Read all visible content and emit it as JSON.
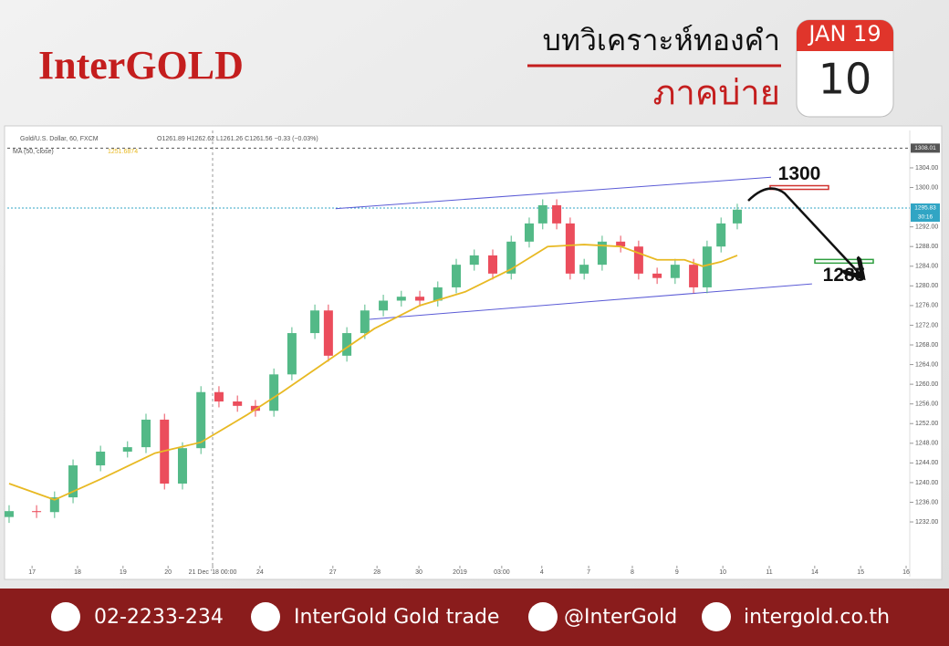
{
  "header": {
    "brand": "InterGOLD",
    "title": "บทวิเคราะห์ทองคำ",
    "subtitle": "ภาคบ่าย",
    "month_year": "JAN 19",
    "day": "10"
  },
  "chart_data": {
    "type": "candlestick",
    "title": "Gold/U.S. Dollar, 60, FXCM",
    "ohlc_text": "O1261.89 H1262.62 L1261.26 C1261.56 −0.33 (−0.03%)",
    "series": [
      {
        "name": "Gold/U.S. Dollar",
        "up_color": "#53b987",
        "down_color": "#eb4d5c",
        "x": [
          0.4,
          6.5,
          10.5,
          14.6,
          20.7,
          26.7,
          30.8,
          34.9,
          38.9,
          43.0,
          47.0,
          51.1,
          55.1,
          59.2,
          63.2,
          68.3,
          71.3,
          75.4,
          79.4,
          83.5,
          87.5,
          91.6,
          95.6,
          99.7,
          103.7,
          107.8,
          111.9,
          115.9,
          118.9,
          122.0,
          125.0,
          128.1,
          132.1,
          136.2,
          140.2,
          144.3,
          148.3,
          152.4,
          155.4,
          158.5,
          162.1
        ],
        "open": [
          1233,
          1234.2,
          1234,
          1237,
          1243.5,
          1246.3,
          1247.2,
          1252.8,
          1239.8,
          1247,
          1258.4,
          1256.5,
          1255.6,
          1254.6,
          1262,
          1270.4,
          1275,
          1265.8,
          1270.4,
          1275,
          1277,
          1277.8,
          1277,
          1279.7,
          1284.3,
          1286.2,
          1282.5,
          1289,
          1292.7,
          1296.4,
          1292.7,
          1282.5,
          1284.3,
          1289,
          1288,
          1282.5,
          1281.6,
          1284.3,
          1279.7,
          1288,
          1292.7
        ],
        "high": [
          1235.4,
          1235.4,
          1238.2,
          1244.7,
          1247.5,
          1248.4,
          1254,
          1254,
          1248.2,
          1259.6,
          1259.6,
          1257.7,
          1256.8,
          1263.2,
          1271.6,
          1276.2,
          1276.2,
          1271.6,
          1276.2,
          1278.2,
          1279,
          1279,
          1280.9,
          1285.5,
          1287.4,
          1287.4,
          1290.2,
          1293.9,
          1297.6,
          1297.6,
          1293.9,
          1285.5,
          1290.2,
          1290.2,
          1289.2,
          1283.7,
          1285.5,
          1285.5,
          1289.2,
          1293.9,
          1296.7
        ],
        "low": [
          1231.8,
          1232.8,
          1232.8,
          1235.8,
          1242.3,
          1245.1,
          1246,
          1238.6,
          1238.6,
          1245.8,
          1255.3,
          1254.4,
          1253.4,
          1253.4,
          1260.8,
          1269.2,
          1264.6,
          1264.6,
          1269.2,
          1273.8,
          1275.8,
          1275.8,
          1275.8,
          1278.5,
          1283.1,
          1281.3,
          1281.3,
          1287.8,
          1291.5,
          1291.5,
          1281.3,
          1281.3,
          1283.1,
          1286.8,
          1281.3,
          1280.4,
          1280.4,
          1278.5,
          1278.5,
          1286.8,
          1291.5
        ],
        "close": [
          1234.2,
          1234,
          1237,
          1243.5,
          1246.3,
          1247.2,
          1252.8,
          1239.8,
          1247,
          1258.4,
          1256.5,
          1255.6,
          1254.6,
          1262,
          1270.4,
          1275,
          1265.8,
          1270.4,
          1275,
          1277,
          1277.8,
          1277,
          1279.7,
          1284.3,
          1286.2,
          1282.5,
          1289,
          1292.7,
          1296.4,
          1292.7,
          1282.5,
          1284.3,
          1289,
          1288,
          1282.5,
          1281.6,
          1284.3,
          1279.7,
          1288,
          1292.7,
          1295.5
        ]
      }
    ],
    "ma": {
      "name": "MA (50, close)",
      "last": 1251.6874,
      "color": "#e8b923",
      "x": [
        0.4,
        10.5,
        20.7,
        32.8,
        43,
        53.1,
        61,
        71.3,
        81.5,
        91.6,
        101.7,
        111.9,
        120,
        128.1,
        136.2,
        144.3,
        150.4,
        154.4,
        158.5,
        162.1
      ],
      "values": [
        1239.8,
        1236.5,
        1240.7,
        1246,
        1248.2,
        1253.7,
        1258.4,
        1264.9,
        1271.3,
        1276,
        1278.8,
        1283.4,
        1288,
        1288.4,
        1288,
        1285.3,
        1285.3,
        1284,
        1284.9,
        1286.2
      ]
    },
    "trendlines": [
      {
        "x": [
          72.9,
          169.6
        ],
        "y": [
          1295.7,
          1302.1
        ],
        "color": "#5b5bd6"
      },
      {
        "x": [
          80.4,
          178.7
        ],
        "y": [
          1273.2,
          1280.4
        ],
        "color": "#5b5bd6"
      }
    ],
    "current_price": 1295.83,
    "countdown": "30:16",
    "top_price": 1308.01,
    "targets": [
      {
        "value": 1300,
        "color": "#d0312d"
      },
      {
        "value": 1285,
        "color": "#2e9e3f"
      }
    ],
    "xlim": [
      0,
      200
    ],
    "ylim": [
      1223.1,
      1311.6
    ],
    "xticks": [
      {
        "value": 5.5,
        "label": "17"
      },
      {
        "value": 15.6,
        "label": "18"
      },
      {
        "value": 25.7,
        "label": "19"
      },
      {
        "value": 35.7,
        "label": "20"
      },
      {
        "value": 45.6,
        "label": "21 Dec '18   00:00"
      },
      {
        "value": 56.1,
        "label": "24"
      },
      {
        "value": 72.3,
        "label": "27"
      },
      {
        "value": 82.1,
        "label": "28"
      },
      {
        "value": 91.4,
        "label": "30"
      },
      {
        "value": 100.5,
        "label": "2019"
      },
      {
        "value": 109.8,
        "label": "03:00"
      },
      {
        "value": 118.7,
        "label": "4"
      },
      {
        "value": 129.1,
        "label": "7"
      },
      {
        "value": 138.8,
        "label": "8"
      },
      {
        "value": 148.7,
        "label": "9"
      },
      {
        "value": 158.9,
        "label": "10"
      },
      {
        "value": 169.2,
        "label": "11"
      },
      {
        "value": 179.3,
        "label": "14"
      },
      {
        "value": 189.5,
        "label": "15"
      },
      {
        "value": 199.6,
        "label": "16"
      }
    ],
    "yticks": [
      {
        "value": 1232,
        "label": "1232.00"
      },
      {
        "value": 1236,
        "label": "1236.00"
      },
      {
        "value": 1240,
        "label": "1240.00"
      },
      {
        "value": 1244,
        "label": "1244.00"
      },
      {
        "value": 1248,
        "label": "1248.00"
      },
      {
        "value": 1252,
        "label": "1252.00"
      },
      {
        "value": 1256,
        "label": "1256.00"
      },
      {
        "value": 1260,
        "label": "1260.00"
      },
      {
        "value": 1264,
        "label": "1264.00"
      },
      {
        "value": 1268,
        "label": "1268.00"
      },
      {
        "value": 1272,
        "label": "1272.00"
      },
      {
        "value": 1276,
        "label": "1276.00"
      },
      {
        "value": 1280,
        "label": "1280.00"
      },
      {
        "value": 1284,
        "label": "1284.00"
      },
      {
        "value": 1288,
        "label": "1288.00"
      },
      {
        "value": 1292,
        "label": "1292.00"
      },
      {
        "value": 1300,
        "label": "1300.00"
      },
      {
        "value": 1304,
        "label": "1304.00"
      }
    ],
    "grid": false
  },
  "footer": {
    "phone": "02-2233-234",
    "facebook": "InterGold Gold trade",
    "line": "@InterGold",
    "website": "intergold.co.th"
  }
}
